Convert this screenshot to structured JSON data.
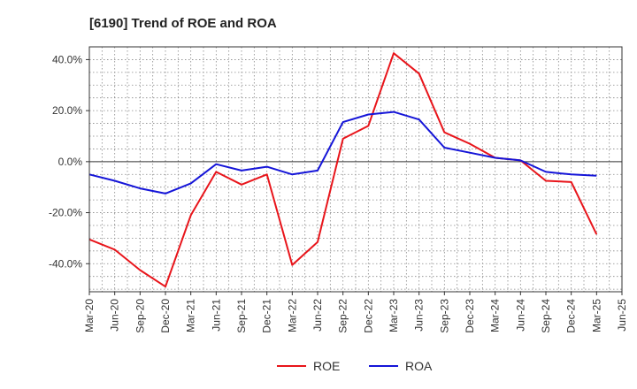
{
  "chart_data": {
    "type": "line",
    "title": "[6190]  Trend of ROE and ROA",
    "xlabel": "",
    "ylabel": "",
    "categories": [
      "Mar-20",
      "Jun-20",
      "Sep-20",
      "Dec-20",
      "Mar-21",
      "Jun-21",
      "Sep-21",
      "Dec-21",
      "Mar-22",
      "Jun-22",
      "Sep-22",
      "Dec-22",
      "Mar-23",
      "Jun-23",
      "Sep-23",
      "Dec-23",
      "Mar-24",
      "Jun-24",
      "Sep-24",
      "Dec-24",
      "Mar-25",
      "Jun-25"
    ],
    "y_ticks": [
      "40.0%",
      "20.0%",
      "0.0%",
      "-20.0%",
      "-40.0%"
    ],
    "ylim": [
      -51,
      45
    ],
    "grid": true,
    "legend_position": "bottom-center",
    "series": [
      {
        "name": "ROE",
        "color": "#e8151b",
        "values": [
          -30.5,
          -34.5,
          -42.5,
          -49,
          -21,
          -4,
          -9,
          -5,
          -40.5,
          -31.5,
          9,
          14,
          42.5,
          34.5,
          11.5,
          7,
          1.5,
          0.5,
          -7.5,
          -8,
          -28.5,
          null
        ]
      },
      {
        "name": "ROA",
        "color": "#1515d8",
        "values": [
          -5,
          -7.5,
          -10.5,
          -12.5,
          -8.5,
          -1,
          -3.5,
          -2,
          -5,
          -3.5,
          15.5,
          18.5,
          19.5,
          16.5,
          5.5,
          3.5,
          1.5,
          0.5,
          -4,
          -5,
          -5.5,
          null
        ]
      }
    ]
  }
}
